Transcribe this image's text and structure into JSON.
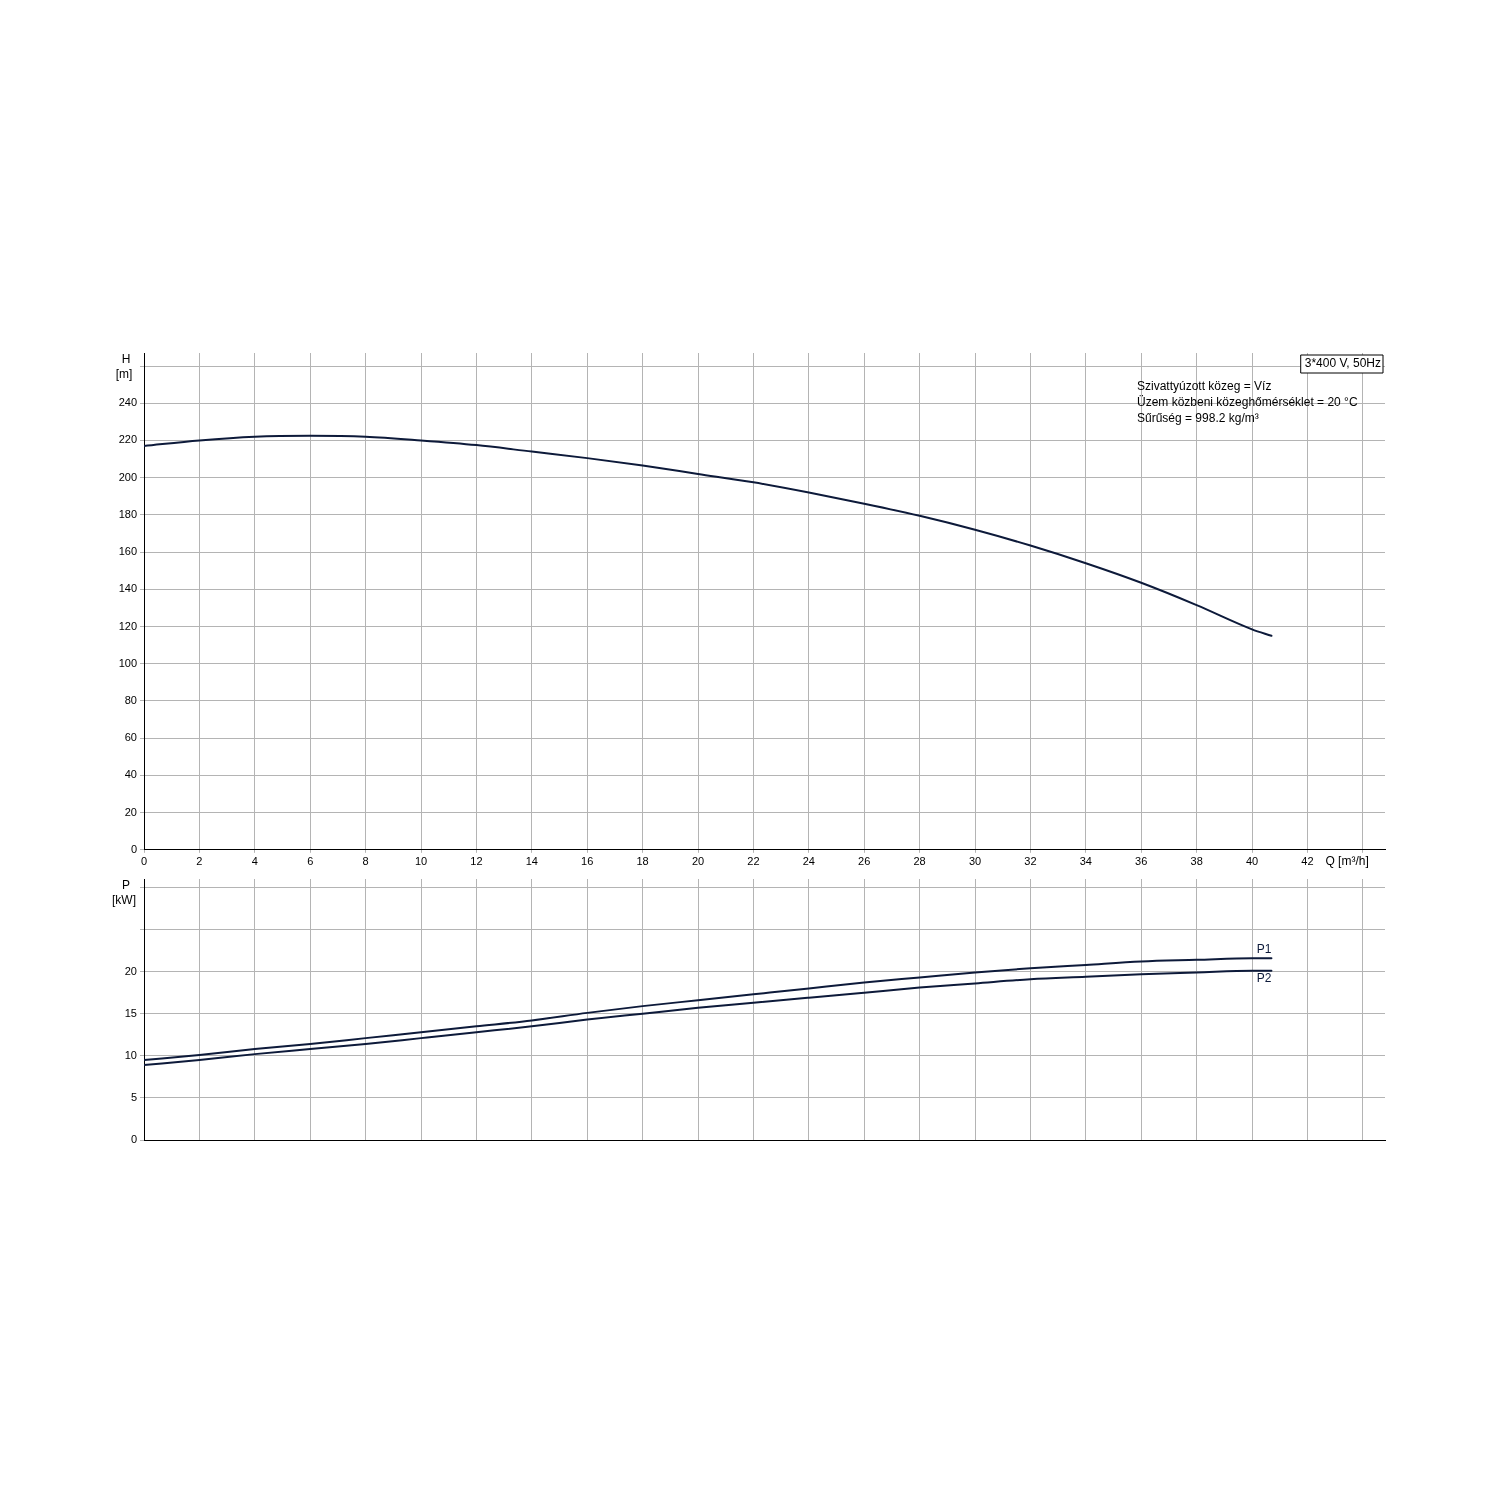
{
  "chart_data": [
    {
      "type": "line",
      "xlabel": "Q [m³/h]",
      "ylabel": "H [m]",
      "annotations": [
        "3*400 V, 50Hz",
        "Szivattyúzott közeg = Víz",
        "Üzem közbeni közeghőmérséklet = 20 °C",
        "Sűrűség = 998.2 kg/m³"
      ],
      "xlim": [
        0,
        44.8
      ],
      "xticks": [
        0,
        2,
        4,
        6,
        8,
        10,
        12,
        14,
        16,
        18,
        20,
        22,
        24,
        26,
        28,
        30,
        32,
        34,
        36,
        38,
        40,
        42,
        {
          "value": 44,
          "label": null
        }
      ],
      "ylim": [
        0,
        267
      ],
      "yticks": [
        0,
        20,
        40,
        60,
        80,
        100,
        120,
        140,
        160,
        180,
        200,
        220,
        240,
        {
          "value": 260,
          "label": null
        }
      ],
      "grid": true,
      "legend": false,
      "marker": "none",
      "line_style": "solid",
      "x": [
        0,
        2,
        4,
        6,
        8,
        10,
        12,
        14,
        16,
        18,
        20,
        22,
        24,
        26,
        28,
        30,
        32,
        34,
        36,
        38,
        40,
        40.7
      ],
      "series": [
        {
          "color": "#0d1a3a",
          "values": [
            217,
            220,
            222,
            222.5,
            222,
            220,
            217.5,
            214,
            210.5,
            206.5,
            202,
            197.5,
            192,
            186,
            179.5,
            172,
            163.5,
            154,
            143.5,
            131.5,
            118.5,
            115
          ]
        }
      ]
    },
    {
      "type": "line",
      "ylabel": "P [kW]",
      "tick_labels": "y",
      "xlim": [
        0,
        44.8
      ],
      "xticks": [
        {
          "value": 0,
          "label": null
        },
        {
          "value": 2,
          "label": null
        },
        {
          "value": 4,
          "label": null
        },
        {
          "value": 6,
          "label": null
        },
        {
          "value": 8,
          "label": null
        },
        {
          "value": 10,
          "label": null
        },
        {
          "value": 12,
          "label": null
        },
        {
          "value": 14,
          "label": null
        },
        {
          "value": 16,
          "label": null
        },
        {
          "value": 18,
          "label": null
        },
        {
          "value": 20,
          "label": null
        },
        {
          "value": 22,
          "label": null
        },
        {
          "value": 24,
          "label": null
        },
        {
          "value": 26,
          "label": null
        },
        {
          "value": 28,
          "label": null
        },
        {
          "value": 30,
          "label": null
        },
        {
          "value": 32,
          "label": null
        },
        {
          "value": 34,
          "label": null
        },
        {
          "value": 36,
          "label": null
        },
        {
          "value": 38,
          "label": null
        },
        {
          "value": 40,
          "label": null
        },
        {
          "value": 42,
          "label": null
        },
        {
          "value": 44,
          "label": null
        }
      ],
      "ylim": [
        0,
        31
      ],
      "yticks": [
        0,
        5,
        10,
        15,
        20,
        {
          "value": 25,
          "label": null
        },
        {
          "value": 30,
          "label": null
        }
      ],
      "grid": true,
      "legend": false,
      "marker": "none",
      "line_style": "solid",
      "x": [
        0,
        2,
        4,
        6,
        8,
        10,
        12,
        14,
        16,
        18,
        20,
        22,
        24,
        26,
        28,
        30,
        32,
        34,
        36,
        38,
        40,
        40.7
      ],
      "series": [
        {
          "name": "P1",
          "color": "#0d1a3a",
          "values": [
            9.5,
            10.1,
            10.8,
            11.4,
            12.1,
            12.8,
            13.5,
            14.2,
            15.1,
            15.9,
            16.6,
            17.3,
            18.0,
            18.7,
            19.3,
            19.9,
            20.4,
            20.8,
            21.2,
            21.4,
            21.6,
            21.6
          ]
        },
        {
          "name": "P2",
          "color": "#0d1a3a",
          "values": [
            8.9,
            9.5,
            10.2,
            10.8,
            11.4,
            12.1,
            12.8,
            13.5,
            14.3,
            15.0,
            15.7,
            16.3,
            16.9,
            17.5,
            18.1,
            18.6,
            19.1,
            19.4,
            19.7,
            19.9,
            20.1,
            20.1
          ]
        }
      ]
    }
  ]
}
